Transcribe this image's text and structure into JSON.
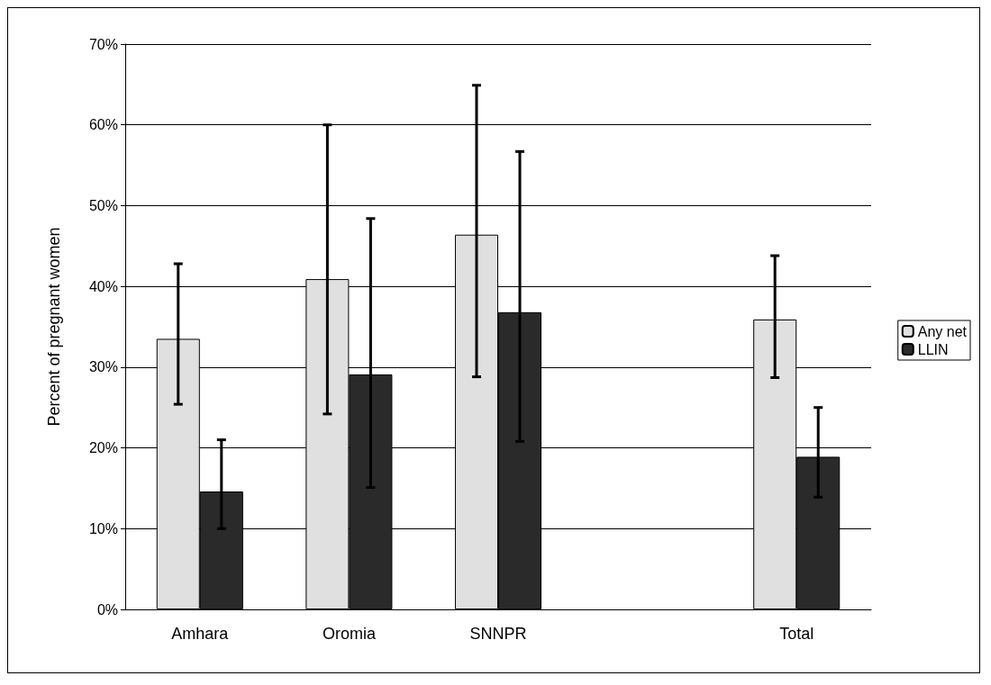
{
  "chart_data": {
    "type": "bar",
    "ylabel": "Percent of pregnant women",
    "categories": [
      "Amhara",
      "Oromia",
      "SNNPR",
      null,
      "Total"
    ],
    "series": [
      {
        "name": "Any net",
        "color": "#e0e0e0",
        "values": [
          33.5,
          40.9,
          46.4,
          null,
          35.9
        ],
        "errors": [
          [
            25.4,
            42.8
          ],
          [
            24.2,
            60.0
          ],
          [
            28.8,
            64.9
          ],
          null,
          [
            28.7,
            43.8
          ]
        ]
      },
      {
        "name": "LLIN",
        "color": "#2a2a2a",
        "values": [
          14.6,
          29.1,
          36.8,
          null,
          18.9
        ],
        "errors": [
          [
            10.0,
            21.0
          ],
          [
            15.1,
            48.4
          ],
          [
            20.8,
            56.7
          ],
          null,
          [
            13.9,
            25.0
          ]
        ]
      }
    ],
    "ylim": [
      0,
      70
    ],
    "yticks": [
      {
        "value": 0,
        "label": "0%"
      },
      {
        "value": 10,
        "label": "10%"
      },
      {
        "value": 20,
        "label": "20%"
      },
      {
        "value": 30,
        "label": "30%"
      },
      {
        "value": 40,
        "label": "40%"
      },
      {
        "value": 50,
        "label": "50%"
      },
      {
        "value": 60,
        "label": "60%"
      },
      {
        "value": 70,
        "label": "70%"
      }
    ],
    "grid": "y",
    "legend": "right"
  }
}
